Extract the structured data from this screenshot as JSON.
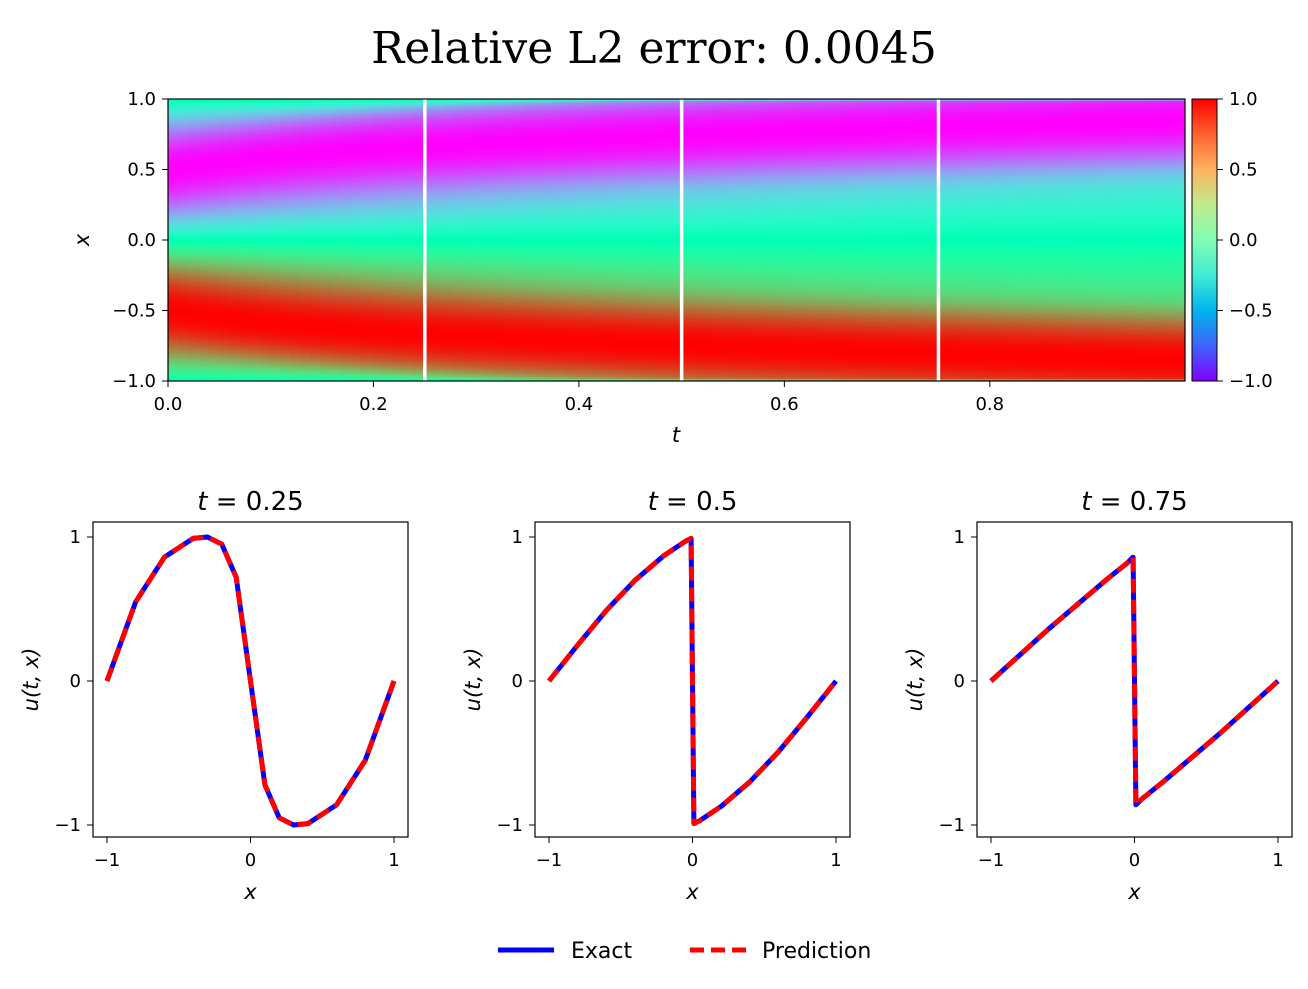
{
  "chart_data": [
    {
      "type": "heatmap",
      "title": "Relative L2 error: 0.0045",
      "xlabel": "t",
      "ylabel": "x",
      "xlim": [
        0.0,
        0.99
      ],
      "ylim": [
        -1.0,
        1.0
      ],
      "x_ticks": [
        "0.0",
        "0.2",
        "0.4",
        "0.6",
        "0.8"
      ],
      "y_ticks": [
        "−1.0",
        "−0.5",
        "0.0",
        "0.5",
        "1.0"
      ],
      "colormap": "rainbow",
      "colorbar": {
        "range": [
          -1.0,
          1.0
        ],
        "ticks": [
          "−1.0",
          "−0.5",
          "0.0",
          "0.5",
          "1.0"
        ]
      },
      "vertical_lines_at_t": [
        0.25,
        0.5,
        0.75
      ],
      "vertical_line_color": "#ffffff"
    },
    {
      "type": "line",
      "title": "t = 0.25",
      "xlabel": "x",
      "ylabel": "u(t, x)",
      "x_ticks": [
        "−1",
        "0",
        "1"
      ],
      "y_ticks": [
        "−1",
        "0",
        "1"
      ],
      "x": [
        -1.0,
        -0.8,
        -0.6,
        -0.4,
        -0.3,
        -0.2,
        -0.1,
        0.0,
        0.1,
        0.2,
        0.3,
        0.4,
        0.6,
        0.8,
        1.0
      ],
      "series": [
        {
          "name": "Exact",
          "values": [
            0.0,
            0.55,
            0.86,
            0.99,
            1.0,
            0.95,
            0.72,
            0.0,
            -0.72,
            -0.95,
            -1.0,
            -0.99,
            -0.86,
            -0.55,
            0.0
          ]
        },
        {
          "name": "Prediction",
          "values": [
            0.0,
            0.55,
            0.86,
            0.99,
            1.0,
            0.95,
            0.72,
            0.0,
            -0.72,
            -0.95,
            -1.0,
            -0.99,
            -0.86,
            -0.55,
            0.0
          ]
        }
      ]
    },
    {
      "type": "line",
      "title": "t = 0.5",
      "xlabel": "x",
      "ylabel": "u(t, x)",
      "x_ticks": [
        "−1",
        "0",
        "1"
      ],
      "y_ticks": [
        "−1",
        "0",
        "1"
      ],
      "x": [
        -1.0,
        -0.8,
        -0.6,
        -0.4,
        -0.2,
        -0.05,
        -0.01,
        0.0,
        0.01,
        0.05,
        0.2,
        0.4,
        0.6,
        0.8,
        1.0
      ],
      "series": [
        {
          "name": "Exact",
          "values": [
            0.0,
            0.25,
            0.49,
            0.7,
            0.87,
            0.97,
            0.99,
            0.0,
            -0.99,
            -0.97,
            -0.87,
            -0.7,
            -0.49,
            -0.25,
            0.0
          ]
        },
        {
          "name": "Prediction",
          "values": [
            0.0,
            0.25,
            0.49,
            0.7,
            0.87,
            0.97,
            0.99,
            0.0,
            -0.99,
            -0.97,
            -0.87,
            -0.7,
            -0.49,
            -0.25,
            0.0
          ]
        }
      ]
    },
    {
      "type": "line",
      "title": "t = 0.75",
      "xlabel": "x",
      "ylabel": "u(t, x)",
      "x_ticks": [
        "−1",
        "0",
        "1"
      ],
      "y_ticks": [
        "−1",
        "0",
        "1"
      ],
      "x": [
        -1.0,
        -0.8,
        -0.6,
        -0.4,
        -0.2,
        -0.05,
        -0.01,
        0.0,
        0.01,
        0.05,
        0.2,
        0.4,
        0.6,
        0.8,
        1.0
      ],
      "series": [
        {
          "name": "Exact",
          "values": [
            0.0,
            0.18,
            0.36,
            0.53,
            0.7,
            0.82,
            0.86,
            0.0,
            -0.86,
            -0.82,
            -0.7,
            -0.53,
            -0.36,
            -0.18,
            0.0
          ]
        },
        {
          "name": "Prediction",
          "values": [
            0.0,
            0.18,
            0.36,
            0.53,
            0.7,
            0.82,
            0.86,
            0.0,
            -0.86,
            -0.82,
            -0.7,
            -0.53,
            -0.36,
            -0.18,
            0.0
          ]
        }
      ]
    }
  ],
  "legend": {
    "placement": "bottom-center",
    "items": [
      {
        "label": "Exact",
        "color": "#0000ff",
        "style": "solid"
      },
      {
        "label": "Prediction",
        "color": "#ff0000",
        "style": "dashed"
      }
    ]
  }
}
